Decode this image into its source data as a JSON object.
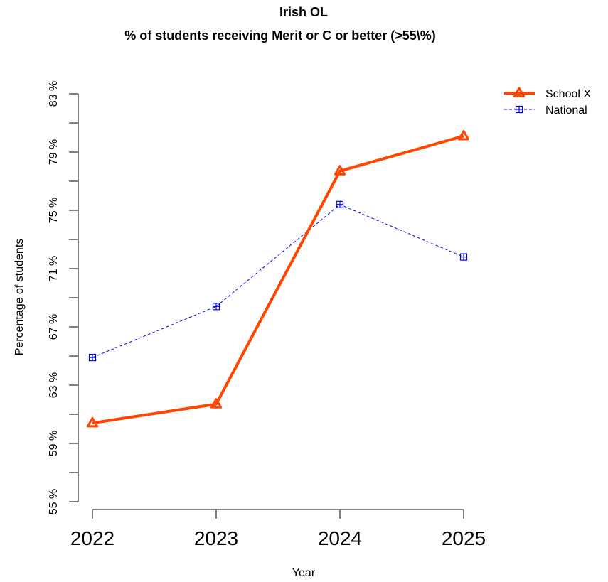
{
  "chart_data": {
    "type": "line",
    "title": "Irish OL",
    "subtitle": "% of students receiving Merit or C or better (>55\\%)",
    "xlabel": "Year",
    "ylabel": "Percentage of students",
    "categories": [
      "2022",
      "2023",
      "2024",
      "2025"
    ],
    "yticks": [
      "55 %",
      "59 %",
      "63 %",
      "67 %",
      "71 %",
      "75 %",
      "79 %",
      "83 %"
    ],
    "ytick_values": [
      55,
      59,
      63,
      67,
      71,
      75,
      79,
      83
    ],
    "ylim": [
      55,
      83
    ],
    "grid": false,
    "legend_position": "top-right",
    "series": [
      {
        "name": "School X",
        "values": [
          60.4,
          61.7,
          77.7,
          80.1
        ],
        "color": "#FF4500",
        "line": "solid",
        "marker": "triangle"
      },
      {
        "name": "National",
        "values": [
          64.9,
          68.4,
          75.4,
          71.8
        ],
        "color": "#0000EE",
        "line": "dashed",
        "marker": "square-plus"
      }
    ]
  }
}
